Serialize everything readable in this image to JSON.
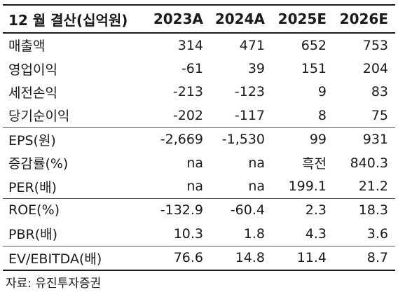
{
  "header": {
    "label": "12 월 결산(십억원)",
    "years": [
      "2023A",
      "2024A",
      "2025E",
      "2026E"
    ]
  },
  "groups": [
    [
      {
        "label": "매출액",
        "values": [
          "314",
          "471",
          "652",
          "753"
        ]
      },
      {
        "label": "영업이익",
        "values": [
          "-61",
          "39",
          "151",
          "204"
        ]
      },
      {
        "label": "세전손익",
        "values": [
          "-213",
          "-123",
          "9",
          "83"
        ]
      },
      {
        "label": "당기순이익",
        "values": [
          "-202",
          "-117",
          "8",
          "75"
        ]
      }
    ],
    [
      {
        "label": "EPS(원)",
        "values": [
          "-2,669",
          "-1,530",
          "99",
          "931"
        ]
      },
      {
        "label": "증감률(%)",
        "values": [
          "na",
          "na",
          "흑전",
          "840.3"
        ]
      },
      {
        "label": "PER(배)",
        "values": [
          "na",
          "na",
          "199.1",
          "21.2"
        ]
      }
    ],
    [
      {
        "label": "ROE(%)",
        "values": [
          "-132.9",
          "-60.4",
          "2.3",
          "18.3"
        ]
      },
      {
        "label": "PBR(배)",
        "values": [
          "10.3",
          "1.8",
          "4.3",
          "3.6"
        ]
      }
    ],
    [
      {
        "label": "EV/EBITDA(배)",
        "values": [
          "76.6",
          "14.8",
          "11.4",
          "8.7"
        ]
      }
    ]
  ],
  "source": "자료: 유진투자증권"
}
